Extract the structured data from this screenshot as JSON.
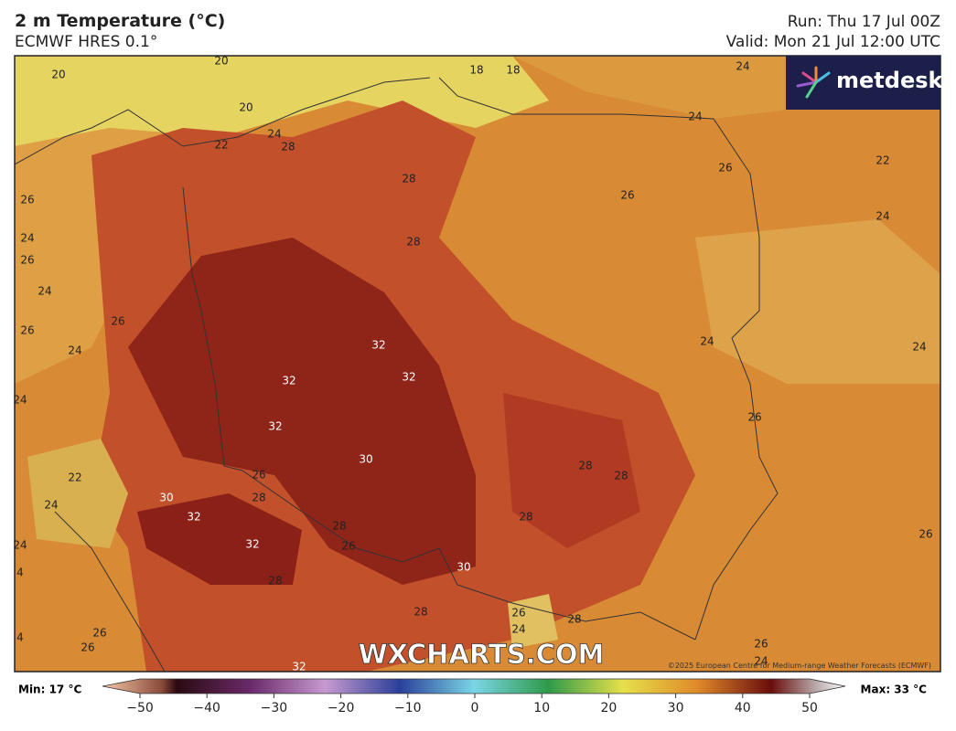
{
  "header": {
    "title": "2 m Temperature (°C)",
    "subtitle": "ECMWF HRES 0.1°",
    "run": "Run: Thu 17 Jul 00Z",
    "valid": "Valid: Mon 21 Jul 12:00 UTC"
  },
  "logo": "metdesk",
  "watermark": "WXCHARTS.COM",
  "credit": "©2025 European Centre for Medium-range Weather Forecasts (ECMWF)",
  "contour_labels": [
    20,
    20,
    18,
    18,
    24,
    20,
    24,
    22,
    24,
    28,
    26,
    22,
    26,
    28,
    26,
    24,
    24,
    28,
    26,
    24,
    26,
    26,
    24,
    24,
    24,
    32,
    32,
    32,
    24,
    26,
    32,
    30,
    28,
    28,
    22,
    26,
    28,
    30,
    24,
    32,
    28,
    28,
    26,
    32,
    26,
    24,
    30,
    28,
    28,
    26,
    28,
    24,
    26,
    26,
    26,
    24,
    32,
    4,
    4
  ],
  "colorbar": {
    "min": "Min: 17 °C",
    "max": "Max: 33 °C",
    "ticks": [
      {
        "value": -50,
        "label": "−50"
      },
      {
        "value": -40,
        "label": "−40"
      },
      {
        "value": -30,
        "label": "−30"
      },
      {
        "value": -20,
        "label": "−20"
      },
      {
        "value": -10,
        "label": "−10"
      },
      0,
      10,
      20,
      30,
      40,
      50
    ]
  }
}
